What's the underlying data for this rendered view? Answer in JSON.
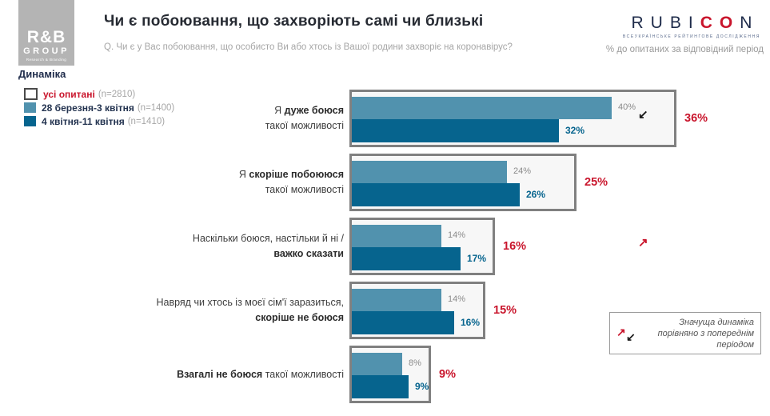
{
  "header": {
    "logo": {
      "line1": "R&B",
      "line2": "GROUP",
      "line3": "Research & Branding"
    },
    "title": "Чи є побоювання, що захворіють самі чи близькі",
    "subtitle": "Q. Чи є у Вас побоювання, що особисто Ви або хтось із Вашої родини захворіє на коронавірус?",
    "rubicon": {
      "letters": [
        {
          "ch": "R",
          "red": false
        },
        {
          "ch": "U",
          "red": false
        },
        {
          "ch": "B",
          "red": false
        },
        {
          "ch": "I",
          "red": false
        },
        {
          "ch": "C",
          "red": true
        },
        {
          "ch": "O",
          "red": true
        },
        {
          "ch": "N",
          "red": false
        }
      ],
      "tagline": "ВСЕУКРАЇНСЬКЕ РЕЙТИНГОВЕ ДОСЛІДЖЕННЯ"
    },
    "unit_note": "% до опитаних за відповідний період"
  },
  "section_label": "Динаміка",
  "legend": {
    "items": [
      {
        "key": "all",
        "label": "усі опитані",
        "n": "(n=2810)",
        "label_color": "red"
      },
      {
        "key": "light",
        "label": "28 березня-3 квітня",
        "n": "(n=1400)",
        "label_color": "navy"
      },
      {
        "key": "dark",
        "label": "4 квітня-11 квітня",
        "n": "(n=1410)",
        "label_color": "navy"
      }
    ]
  },
  "chart_data": {
    "type": "bar",
    "orientation": "horizontal",
    "title": "Чи є побоювання, що захворіють самі чи близькі",
    "unit": "% до опитаних за відповідний період",
    "categories_plain": [
      "Я дуже боюся такої можливості",
      "Я скоріше побоююся такої можливості",
      "Наскільки боюся, настільки й ні / важко сказати",
      "Навряд чи хтось із моєї сім'ї заразиться, скоріше не боюся",
      "Взагалі не боюся такої можливості"
    ],
    "categories_rich": [
      [
        [
          {
            "t": "Я ",
            "b": false
          },
          {
            "t": "дуже боюся",
            "b": true
          }
        ],
        [
          {
            "t": "такої можливості",
            "b": false
          }
        ]
      ],
      [
        [
          {
            "t": "Я ",
            "b": false
          },
          {
            "t": "скоріше побоююся",
            "b": true
          }
        ],
        [
          {
            "t": "такої можливості",
            "b": false
          }
        ]
      ],
      [
        [
          {
            "t": "Наскільки боюся, настільки й ні /",
            "b": false
          }
        ],
        [
          {
            "t": "важко сказати",
            "b": true
          }
        ]
      ],
      [
        [
          {
            "t": "Навряд чи хтось із моєї сім'ї заразиться,",
            "b": false
          }
        ],
        [
          {
            "t": "скоріше не боюся",
            "b": true
          }
        ]
      ],
      [
        [
          {
            "t": "Взагалі не боюся",
            "b": true
          },
          {
            "t": " такої можливості",
            "b": false
          }
        ]
      ]
    ],
    "series": [
      {
        "name": "усі опитані",
        "n": 2810,
        "role": "total",
        "values": [
          36,
          25,
          16,
          15,
          9
        ],
        "color": "#f7f7f7"
      },
      {
        "name": "28 березня-3 квітня",
        "n": 1400,
        "role": "wave1",
        "values": [
          40,
          24,
          14,
          14,
          8
        ],
        "color": "#5192ae"
      },
      {
        "name": "4 квітня-11 квітня",
        "n": 1410,
        "role": "wave2",
        "values": [
          32,
          26,
          17,
          16,
          9
        ],
        "color": "#06648e"
      }
    ],
    "value_suffix": "%",
    "xlim": [
      0,
      40
    ],
    "grid": false,
    "legend_position": "top-left",
    "significance_markers": [
      {
        "category_index": 0,
        "direction": "down",
        "color": "#1a1a1a"
      },
      {
        "category_index": 2,
        "direction": "up",
        "color": "#c9152c"
      }
    ]
  },
  "annotation": {
    "arrow_up": "↗",
    "arrow_down": "↙",
    "line1": "Значуща динаміка",
    "line2": "порівняно з попереднім",
    "line3": "періодом"
  },
  "colors": {
    "wave1": "#5192ae",
    "wave2": "#06648e",
    "total_box_fill": "#f7f7f7",
    "total_box_border": "#808080",
    "accent_red": "#c9152c",
    "navy": "#1e2b4a",
    "gray_text": "#9a9a9a"
  }
}
